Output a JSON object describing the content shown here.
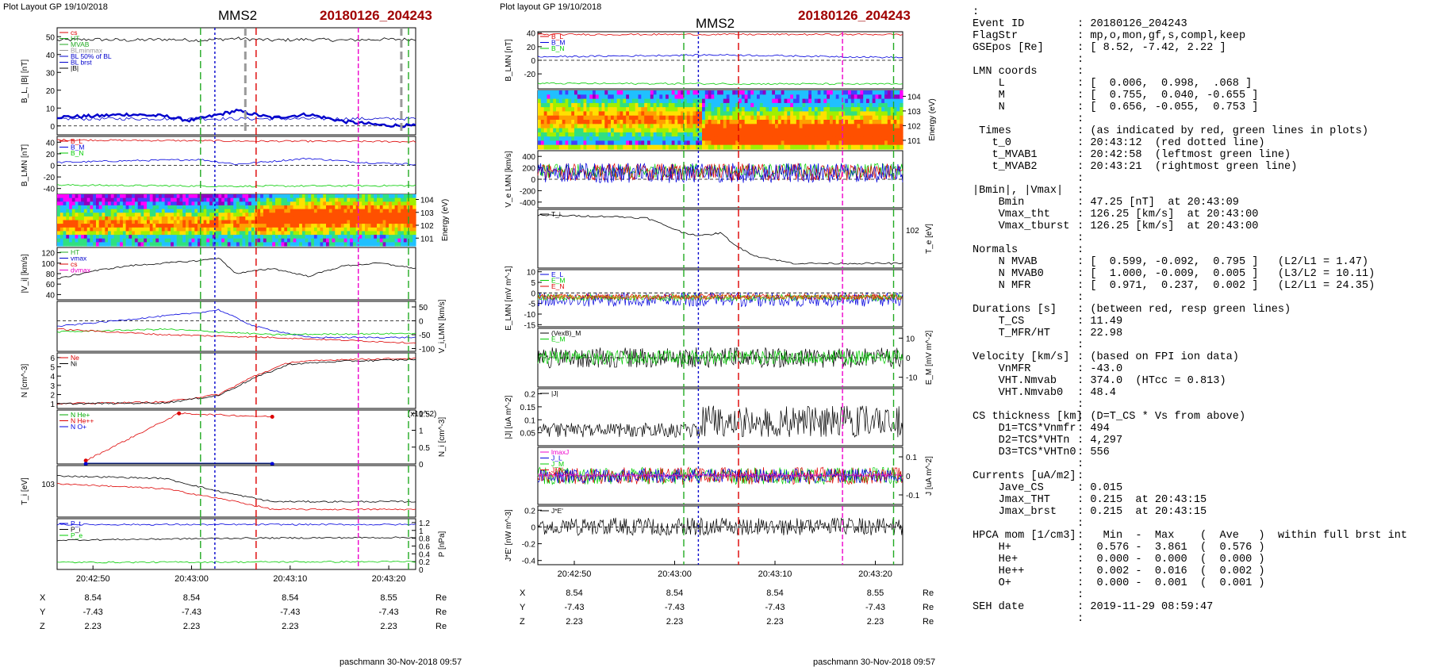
{
  "left_figure": {
    "header": "Plot Layout GP 19/10/2018",
    "spacecraft": "MMS2",
    "event": "20180126_204243",
    "footer": "paschmann 30-Nov-2018 09:57",
    "time_ticks": [
      "20:42:50",
      "20:43:00",
      "20:43:10",
      "20:43:20"
    ],
    "position_rows": [
      {
        "label": "X",
        "values": [
          "8.54",
          "8.54",
          "8.54",
          "8.55"
        ],
        "unit": "Re"
      },
      {
        "label": "Y",
        "values": [
          "-7.43",
          "-7.43",
          "-7.43",
          "-7.43"
        ],
        "unit": "Re"
      },
      {
        "label": "Z",
        "values": [
          "2.23",
          "2.23",
          "2.23",
          "2.23"
        ],
        "unit": "Re"
      }
    ]
  },
  "right_figure": {
    "header": "Plot layout GP 19/10/2018",
    "spacecraft": "MMS2",
    "event": "20180126_204243",
    "footer": "paschmann 30-Nov-2018 09:57",
    "time_ticks": [
      "20:42:50",
      "20:43:00",
      "20:43:10",
      "20:43:20"
    ],
    "position_rows": [
      {
        "label": "X",
        "values": [
          "8.54",
          "8.54",
          "8.54",
          "8.55"
        ],
        "unit": "Re"
      },
      {
        "label": "Y",
        "values": [
          "-7.43",
          "-7.43",
          "-7.43",
          "-7.43"
        ],
        "unit": "Re"
      },
      {
        "label": "Z",
        "values": [
          "2.23",
          "2.23",
          "2.23",
          "2.23"
        ],
        "unit": "Re"
      }
    ]
  },
  "info_rows": [
    [
      ":",
      ""
    ],
    [
      "Event ID",
      ": 20180126_204243"
    ],
    [
      "FlagStr",
      ": mp,o,mon,gf,s,compl,keep"
    ],
    [
      "GSEpos [Re]",
      ": [ 8.52, -7.42, 2.22 ]"
    ],
    [
      "",
      ":"
    ],
    [
      "LMN coords",
      ":"
    ],
    [
      "    L",
      ": [  0.006,  0.998,  .068 ]"
    ],
    [
      "    M",
      ": [  0.755,  0.040, -0.655 ]"
    ],
    [
      "    N",
      ": [  0.656, -0.055,  0.753 ]"
    ],
    [
      "",
      ":"
    ],
    [
      " Times",
      ": (as indicated by red, green lines in plots)"
    ],
    [
      "   t_0",
      ": 20:43:12  (red dotted line)"
    ],
    [
      "   t_MVAB1",
      ": 20:42:58  (leftmost green line)"
    ],
    [
      "   t_MVAB2",
      ": 20:43:21  (rightmost green line)"
    ],
    [
      "",
      ":"
    ],
    [
      "|Bmin|, |Vmax|",
      ":"
    ],
    [
      "    Bmin",
      ": 47.25 [nT]  at 20:43:09"
    ],
    [
      "    Vmax_tht",
      ": 126.25 [km/s]  at 20:43:00"
    ],
    [
      "    Vmax_tburst",
      ": 126.25 [km/s]  at 20:43:00"
    ],
    [
      "",
      ":"
    ],
    [
      "Normals",
      ":"
    ],
    [
      "    N MVAB",
      ": [  0.599, -0.092,  0.795 ]   (L2/L1 = 1.47)"
    ],
    [
      "    N MVAB0",
      ": [  1.000, -0.009,  0.005 ]   (L3/L2 = 10.11)"
    ],
    [
      "    N MFR",
      ": [  0.971,  0.237,  0.002 ]   (L2/L1 = 24.35)"
    ],
    [
      "",
      ":"
    ],
    [
      "Durations [s]",
      ": (between red, resp green lines)"
    ],
    [
      "    T_CS",
      ": 11.49"
    ],
    [
      "    T_MFR/HT",
      ": 22.98"
    ],
    [
      "",
      ":"
    ],
    [
      "Velocity [km/s]",
      ": (based on FPI ion data)"
    ],
    [
      "    VnMFR",
      ": -43.0"
    ],
    [
      "    VHT.Nmvab",
      ": 374.0  (HTcc = 0.813)"
    ],
    [
      "    VHT.Nmvab0",
      ": 48.4"
    ],
    [
      "",
      ":"
    ],
    [
      "CS thickness [km]",
      ": (D=T_CS * Vs from above)"
    ],
    [
      "    D1=TCS*Vnmfr",
      ": 494"
    ],
    [
      "    D2=TCS*VHTn",
      ": 4,297"
    ],
    [
      "    D3=TCS*VHTn0",
      ": 556"
    ],
    [
      "",
      ":"
    ],
    [
      "Currents [uA/m2]",
      ":"
    ],
    [
      "    Jave_CS",
      ": 0.015"
    ],
    [
      "    Jmax_THT",
      ": 0.215  at 20:43:15"
    ],
    [
      "    Jmax_brst",
      ": 0.215  at 20:43:15"
    ],
    [
      "",
      ":"
    ],
    [
      "HPCA mom [1/cm3]",
      ":   Min  -  Max    (  Ave   )  within full brst int"
    ],
    [
      "    H+",
      ":  0.576 -  3.861  (  0.576 )"
    ],
    [
      "    He+",
      ":  0.000 -  0.000  (  0.000 )"
    ],
    [
      "    He++",
      ":  0.002 -  0.016  (  0.002 )"
    ],
    [
      "    O+",
      ":  0.000 -  0.001  (  0.001 )"
    ],
    [
      "",
      ":"
    ],
    [
      "SEH date",
      ": 2019-11-29 08:59:47"
    ],
    [
      "",
      ":"
    ]
  ],
  "chart_data": [
    {
      "type": "line",
      "panel": "left-1",
      "ylabel": "B_L, |B| [nT]",
      "ylim": [
        -5,
        55
      ],
      "yticks": [
        0,
        10,
        20,
        30,
        40,
        50
      ],
      "legend": [
        "cs",
        "HT",
        "MVAB",
        "BLminmax",
        "BL 50% of BL",
        "BL brst",
        "|B|"
      ],
      "series": [
        {
          "name": "|B|",
          "color": "#000000",
          "x": [
            0,
            0.1,
            0.2,
            0.3,
            0.4,
            0.5,
            0.6,
            0.7,
            0.8,
            0.9,
            1
          ],
          "y": [
            48,
            48.5,
            48,
            48.5,
            48,
            49,
            48,
            48.5,
            48,
            48.5,
            48.5
          ]
        },
        {
          "name": "BL brst",
          "color": "#0000cc",
          "x": [
            0,
            0.1,
            0.2,
            0.3,
            0.37,
            0.42,
            0.5,
            0.6,
            0.7,
            0.8,
            0.9,
            1
          ],
          "y": [
            5,
            5.5,
            6.5,
            5.5,
            3,
            5,
            8.5,
            4.5,
            6.5,
            2.5,
            0.5,
            0
          ]
        },
        {
          "name": "BL 50% of BL",
          "color": "#0000cc",
          "x": [
            0,
            1
          ],
          "y": [
            4,
            4
          ]
        }
      ]
    },
    {
      "type": "line",
      "panel": "left-2",
      "ylabel": "B_LMN [nT]",
      "ylim": [
        -50,
        50
      ],
      "yticks": [
        -40,
        -20,
        0,
        20,
        40
      ],
      "legend": [
        "B_L",
        "B_M",
        "B_N"
      ],
      "series": [
        {
          "name": "B_L",
          "color": "#dd0000",
          "x": [
            0,
            0.5,
            1
          ],
          "y": [
            44,
            42,
            41
          ]
        },
        {
          "name": "B_M",
          "color": "#0000dd",
          "x": [
            0,
            0.2,
            0.4,
            0.5,
            0.7,
            0.85,
            1
          ],
          "y": [
            5,
            8,
            10,
            2,
            12,
            5,
            2
          ]
        },
        {
          "name": "B_N",
          "color": "#00cc00",
          "x": [
            0,
            0.5,
            1
          ],
          "y": [
            -34,
            -36,
            -35
          ]
        }
      ]
    },
    {
      "type": "heatmap",
      "panel": "left-3",
      "ylabel": "Energy (eV)",
      "yticks": [
        "10^1",
        "10^2",
        "10^3",
        "10^4"
      ]
    },
    {
      "type": "line",
      "panel": "left-4",
      "ylabel": "|V_i| [km/s]",
      "ylim": [
        30,
        130
      ],
      "yticks": [
        40,
        60,
        80,
        100,
        120
      ],
      "legend": [
        "HT",
        "vmax",
        "cs",
        "dvmax"
      ],
      "series": [
        {
          "name": "|V_i|",
          "color": "#000000",
          "x": [
            0,
            0.1,
            0.2,
            0.3,
            0.4,
            0.45,
            0.5,
            0.6,
            0.7,
            0.8,
            0.9,
            1
          ],
          "y": [
            70,
            85,
            95,
            100,
            105,
            110,
            80,
            90,
            75,
            95,
            100,
            90
          ]
        }
      ]
    },
    {
      "type": "line",
      "panel": "left-5",
      "ylabel": "V_i,LMN [km/s]",
      "ylim": [
        -110,
        70
      ],
      "yticks": [
        -100,
        -50,
        0,
        50
      ],
      "series": [
        {
          "name": "V_L",
          "color": "#0000dd",
          "x": [
            0,
            0.2,
            0.4,
            0.45,
            0.55,
            0.7,
            1
          ],
          "y": [
            -20,
            5,
            30,
            40,
            -20,
            -60,
            -60
          ]
        },
        {
          "name": "V_M",
          "color": "#00cc00",
          "x": [
            0,
            0.3,
            0.6,
            1
          ],
          "y": [
            -40,
            -30,
            -50,
            -45
          ]
        },
        {
          "name": "V_N",
          "color": "#dd0000",
          "x": [
            0,
            0.3,
            0.6,
            1
          ],
          "y": [
            -30,
            -50,
            -60,
            -80
          ]
        }
      ]
    },
    {
      "type": "line",
      "panel": "left-6",
      "ylabel": "N [cm^-3]",
      "ylim": [
        0.5,
        6.5
      ],
      "yticks": [
        1,
        2,
        3,
        4,
        5,
        6
      ],
      "legend": [
        "Ne",
        "Ni"
      ],
      "series": [
        {
          "name": "Ne",
          "color": "#dd0000",
          "x": [
            0,
            0.3,
            0.45,
            0.55,
            0.65,
            0.8,
            1
          ],
          "y": [
            1,
            1.2,
            2,
            4,
            5.5,
            5.8,
            5.9
          ]
        },
        {
          "name": "Ni",
          "color": "#000000",
          "x": [
            0,
            0.3,
            0.45,
            0.55,
            0.65,
            0.8,
            1
          ],
          "y": [
            1,
            1.1,
            1.9,
            3.8,
            5.3,
            5.6,
            5.8
          ]
        }
      ]
    },
    {
      "type": "line",
      "panel": "left-7",
      "ylabel": "N_i [cm^-3]",
      "y2label": "(x10^-2)",
      "ylim": [
        0,
        1.6
      ],
      "yticks": [
        0.0,
        0.5,
        1.0,
        1.5
      ],
      "legend": [
        "N He+",
        "N He++",
        "N O+"
      ],
      "series": [
        {
          "name": "N He++",
          "color": "#dd0000",
          "x": [
            0.08,
            0.34,
            0.6
          ],
          "y": [
            0.1,
            1.5,
            1.4
          ]
        },
        {
          "name": "N He+",
          "color": "#00aa00",
          "x": [
            0.08,
            0.6
          ],
          "y": [
            0,
            0
          ]
        },
        {
          "name": "N O+",
          "color": "#0000dd",
          "x": [
            0.08,
            0.6
          ],
          "y": [
            0,
            0
          ]
        }
      ]
    },
    {
      "type": "line",
      "panel": "left-8",
      "ylabel": "T_i [eV]",
      "yticks": [
        "10^3"
      ],
      "series": [
        {
          "name": "T_par",
          "color": "#dd0000",
          "x": [
            0,
            0.3,
            0.5,
            0.6,
            1
          ],
          "y": [
            0.65,
            0.55,
            0.3,
            0.15,
            0.15
          ]
        },
        {
          "name": "T_perp",
          "color": "#000000",
          "x": [
            0,
            0.3,
            0.45,
            0.6,
            1
          ],
          "y": [
            0.8,
            0.75,
            0.5,
            0.3,
            0.3
          ]
        }
      ]
    },
    {
      "type": "line",
      "panel": "left-9",
      "ylabel": "P [nPa]",
      "ylim": [
        0,
        1.3
      ],
      "yticks": [
        0.0,
        0.2,
        0.4,
        0.6,
        0.8,
        1.0,
        1.2
      ],
      "legend": [
        "P_t",
        "P_i",
        "P_e"
      ],
      "series": [
        {
          "name": "P_t",
          "color": "#0000dd",
          "x": [
            0,
            1
          ],
          "y": [
            1.15,
            1.15
          ]
        },
        {
          "name": "P_i",
          "color": "#000000",
          "x": [
            0,
            0.5,
            1
          ],
          "y": [
            0.75,
            0.8,
            0.82
          ]
        },
        {
          "name": "P_e",
          "color": "#00cc00",
          "x": [
            0,
            1
          ],
          "y": [
            0.18,
            0.2
          ]
        }
      ]
    },
    {
      "type": "line",
      "panel": "right-1",
      "ylabel": "B_LMN [nT]",
      "ylim": [
        -42,
        42
      ],
      "yticks": [
        -20,
        0,
        20,
        40
      ],
      "legend": [
        "B_L",
        "B_M",
        "B_N"
      ],
      "series": [
        {
          "name": "B_L",
          "color": "#dd0000",
          "x": [
            0,
            1
          ],
          "y": [
            38,
            38
          ]
        },
        {
          "name": "B_M",
          "color": "#0000dd",
          "x": [
            0,
            0.5,
            1
          ],
          "y": [
            5,
            8,
            4
          ]
        },
        {
          "name": "B_N",
          "color": "#00cc00",
          "x": [
            0,
            1
          ],
          "y": [
            -34,
            -35
          ]
        }
      ]
    },
    {
      "type": "heatmap",
      "panel": "right-2",
      "ylabel": "Energy (eV)",
      "yticks": [
        "10^1",
        "10^2",
        "10^3",
        "10^4"
      ]
    },
    {
      "type": "line",
      "panel": "right-3",
      "ylabel": "V_e LMN [km/s]",
      "ylim": [
        -500,
        500
      ],
      "yticks": [
        -400,
        -200,
        0,
        200,
        400
      ]
    },
    {
      "type": "line",
      "panel": "right-4",
      "ylabel": "T_e [eV]",
      "yticks": [
        "10^2"
      ],
      "legend": [
        "T_i"
      ],
      "series": [
        {
          "name": "T_e",
          "color": "#000000",
          "x": [
            0,
            0.2,
            0.3,
            0.4,
            0.45,
            0.5,
            0.55,
            0.6,
            0.7,
            1
          ],
          "y": [
            0.9,
            0.88,
            0.85,
            0.6,
            0.55,
            0.6,
            0.35,
            0.2,
            0.08,
            0.08
          ]
        }
      ]
    },
    {
      "type": "line",
      "panel": "right-5",
      "ylabel": "E_LMN [mV m^-1]",
      "ylim": [
        -16,
        11
      ],
      "yticks": [
        -15,
        -10,
        -5,
        0,
        5,
        10
      ],
      "legend": [
        "E_L",
        "E_M",
        "E_N"
      ]
    },
    {
      "type": "line",
      "panel": "right-6",
      "ylabel": "E_M [mV m^-2]",
      "ylim": [
        -15,
        15
      ],
      "yticks": [
        -10,
        0,
        10
      ],
      "legend": [
        "(VexB)_M",
        "E_M"
      ]
    },
    {
      "type": "line",
      "panel": "right-7",
      "ylabel": "|J| [uA m^-2]",
      "ylim": [
        0,
        0.22
      ],
      "yticks": [
        0.05,
        0.1,
        0.15,
        0.2
      ],
      "legend": [
        "|J|"
      ]
    },
    {
      "type": "line",
      "panel": "right-8",
      "ylabel": "J [uA m^-2]",
      "ylim": [
        -0.15,
        0.15
      ],
      "yticks": [
        -0.1,
        0.0,
        0.1
      ],
      "legend": [
        "lmaxJ",
        "J_L",
        "J_M",
        "J_N"
      ]
    },
    {
      "type": "line",
      "panel": "right-9",
      "ylabel": "J*E' [nW m^-3]",
      "ylim": [
        -0.45,
        0.25
      ],
      "yticks": [
        -0.4,
        -0.2,
        0.0,
        0.2
      ],
      "legend": [
        "J*E'"
      ]
    }
  ],
  "colors": {
    "red_line": "#dd0000",
    "green_line": "#22aa22",
    "magenta_line": "#ee00cc",
    "blue_line": "#0000cc",
    "event_title": "#a00000"
  }
}
